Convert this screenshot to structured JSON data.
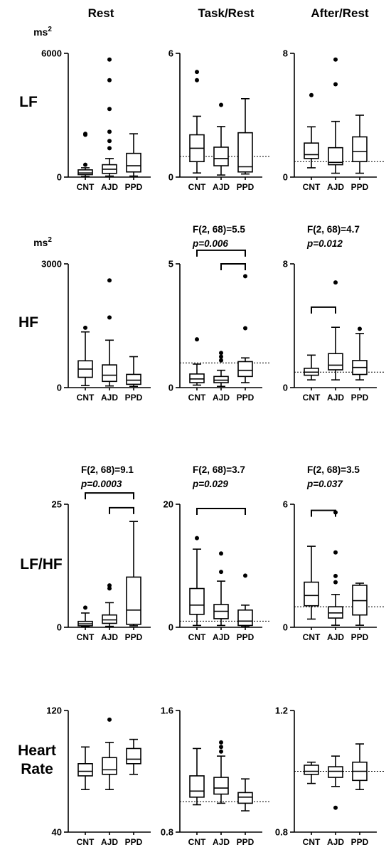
{
  "columns": [
    "Rest",
    "Task/Rest",
    "After/Rest"
  ],
  "rows": [
    {
      "label": "LF",
      "unit": "ms2"
    },
    {
      "label": "HF",
      "unit": "ms2"
    },
    {
      "label": "LF/HF",
      "unit": ""
    },
    {
      "label_lines": [
        "Heart",
        "Rate"
      ],
      "unit": ""
    }
  ],
  "groups": [
    "CNT",
    "AJD",
    "PPD"
  ],
  "chart_data": [
    {
      "type": "box",
      "id": "lf-rest",
      "row": 0,
      "col": 0,
      "ylim": [
        0,
        6000
      ],
      "yticks": [
        "0",
        "6000"
      ],
      "reference_line": null,
      "stat_text": null,
      "p_text": null,
      "brackets": [],
      "boxes": [
        {
          "group": "CNT",
          "whisker_low": 30,
          "q1": 120,
          "median": 200,
          "q3": 350,
          "whisker_high": 450,
          "outliers": [
            2100,
            2050,
            600
          ]
        },
        {
          "group": "AJD",
          "whisker_low": 50,
          "q1": 180,
          "median": 380,
          "q3": 600,
          "whisker_high": 900,
          "outliers": [
            5700,
            4700,
            3300,
            2200,
            1750,
            1400
          ]
        },
        {
          "group": "PPD",
          "whisker_low": 50,
          "q1": 250,
          "median": 550,
          "q3": 1150,
          "whisker_high": 2100,
          "outliers": []
        }
      ]
    },
    {
      "type": "box",
      "id": "lf-task",
      "row": 0,
      "col": 1,
      "ylim": [
        0,
        6
      ],
      "yticks": [
        "0",
        "6"
      ],
      "reference_line": 1,
      "stat_text": null,
      "p_text": null,
      "brackets": [],
      "boxes": [
        {
          "group": "CNT",
          "whisker_low": 0.2,
          "q1": 0.75,
          "median": 1.4,
          "q3": 2.05,
          "whisker_high": 2.95,
          "outliers": [
            5.1,
            4.7
          ]
        },
        {
          "group": "AJD",
          "whisker_low": 0.1,
          "q1": 0.55,
          "median": 0.9,
          "q3": 1.45,
          "whisker_high": 2.45,
          "outliers": [
            3.5
          ]
        },
        {
          "group": "PPD",
          "whisker_low": 0.15,
          "q1": 0.25,
          "median": 0.5,
          "q3": 2.15,
          "whisker_high": 3.8,
          "outliers": []
        }
      ]
    },
    {
      "type": "box",
      "id": "lf-after",
      "row": 0,
      "col": 2,
      "ylim": [
        0,
        8
      ],
      "yticks": [
        "0",
        "8"
      ],
      "reference_line": 1,
      "stat_text": null,
      "p_text": null,
      "brackets": [],
      "boxes": [
        {
          "group": "CNT",
          "whisker_low": 0.6,
          "q1": 1.2,
          "median": 1.45,
          "q3": 2.2,
          "whisker_high": 3.25,
          "outliers": [
            5.3
          ]
        },
        {
          "group": "AJD",
          "whisker_low": 0.25,
          "q1": 0.8,
          "median": 0.95,
          "q3": 1.9,
          "whisker_high": 3.6,
          "outliers": [
            7.6,
            6.0
          ]
        },
        {
          "group": "PPD",
          "whisker_low": 0.25,
          "q1": 1.0,
          "median": 1.65,
          "q3": 2.6,
          "whisker_high": 4.0,
          "outliers": []
        }
      ]
    },
    {
      "type": "box",
      "id": "hf-rest",
      "row": 1,
      "col": 0,
      "ylim": [
        0,
        3000
      ],
      "yticks": [
        "0",
        "3000"
      ],
      "reference_line": null,
      "stat_text": null,
      "p_text": null,
      "brackets": [],
      "boxes": [
        {
          "group": "CNT",
          "whisker_low": 50,
          "q1": 250,
          "median": 450,
          "q3": 650,
          "whisker_high": 1350,
          "outliers": [
            1450
          ]
        },
        {
          "group": "AJD",
          "whisker_low": 40,
          "q1": 150,
          "median": 300,
          "q3": 550,
          "whisker_high": 1150,
          "outliers": [
            2600,
            1700
          ]
        },
        {
          "group": "PPD",
          "whisker_low": 30,
          "q1": 80,
          "median": 180,
          "q3": 320,
          "whisker_high": 750,
          "outliers": []
        }
      ]
    },
    {
      "type": "box",
      "id": "hf-task",
      "row": 1,
      "col": 1,
      "ylim": [
        0,
        5
      ],
      "yticks": [
        "0",
        "5"
      ],
      "reference_line": 1,
      "stat_text": "F(2, 68)=5.5",
      "p_text": "p=0.006",
      "brackets": [
        {
          "from": 0,
          "to": 2,
          "y": 5.55
        },
        {
          "from": 1,
          "to": 2,
          "y": 5.0
        }
      ],
      "boxes": [
        {
          "group": "CNT",
          "whisker_low": 0.1,
          "q1": 0.2,
          "median": 0.35,
          "q3": 0.55,
          "whisker_high": 0.95,
          "outliers": [
            1.95
          ]
        },
        {
          "group": "AJD",
          "whisker_low": 0.05,
          "q1": 0.2,
          "median": 0.3,
          "q3": 0.45,
          "whisker_high": 0.7,
          "outliers": [
            1.4,
            1.25,
            1.1
          ]
        },
        {
          "group": "PPD",
          "whisker_low": 0.2,
          "q1": 0.45,
          "median": 0.7,
          "q3": 1.05,
          "whisker_high": 1.2,
          "outliers": [
            4.5,
            2.4
          ]
        }
      ]
    },
    {
      "type": "box",
      "id": "hf-after",
      "row": 1,
      "col": 2,
      "ylim": [
        0,
        8
      ],
      "yticks": [
        "0",
        "8"
      ],
      "reference_line": 1,
      "stat_text": "F(2, 68)=4.7",
      "p_text": "p=0.012",
      "brackets": [
        {
          "from": 0,
          "to": 1,
          "y": 5.2
        }
      ],
      "boxes": [
        {
          "group": "CNT",
          "whisker_low": 0.5,
          "q1": 0.8,
          "median": 1.0,
          "q3": 1.25,
          "whisker_high": 2.1,
          "outliers": []
        },
        {
          "group": "AJD",
          "whisker_low": 0.5,
          "q1": 1.15,
          "median": 1.45,
          "q3": 2.2,
          "whisker_high": 3.9,
          "outliers": [
            6.8
          ]
        },
        {
          "group": "PPD",
          "whisker_low": 0.5,
          "q1": 0.85,
          "median": 1.3,
          "q3": 1.75,
          "whisker_high": 3.5,
          "outliers": [
            3.8
          ]
        }
      ]
    },
    {
      "type": "box",
      "id": "lfhf-rest",
      "row": 2,
      "col": 0,
      "ylim": [
        0,
        25
      ],
      "yticks": [
        "0",
        "25"
      ],
      "reference_line": null,
      "stat_text": "F(2, 68)=9.1",
      "p_text": "p=0.0003",
      "brackets": [
        {
          "from": 0,
          "to": 2,
          "y": 27.3
        },
        {
          "from": 1,
          "to": 2,
          "y": 24.3
        }
      ],
      "boxes": [
        {
          "group": "CNT",
          "whisker_low": 0.1,
          "q1": 0.3,
          "median": 0.7,
          "q3": 1.2,
          "whisker_high": 2.9,
          "outliers": [
            4.0
          ]
        },
        {
          "group": "AJD",
          "whisker_low": 0.2,
          "q1": 0.8,
          "median": 1.5,
          "q3": 2.5,
          "whisker_high": 5.0,
          "outliers": [
            8.5,
            7.9
          ]
        },
        {
          "group": "PPD",
          "whisker_low": 0.3,
          "q1": 0.6,
          "median": 3.5,
          "q3": 10.2,
          "whisker_high": 21.5,
          "outliers": []
        }
      ]
    },
    {
      "type": "box",
      "id": "lfhf-task",
      "row": 2,
      "col": 1,
      "ylim": [
        0,
        20
      ],
      "yticks": [
        "0",
        "20"
      ],
      "reference_line": 1,
      "stat_text": "F(2, 68)=3.7",
      "p_text": "p=0.029",
      "brackets": [
        {
          "from": 0,
          "to": 2,
          "y": 19.3
        }
      ],
      "boxes": [
        {
          "group": "CNT",
          "whisker_low": 0.3,
          "q1": 2.1,
          "median": 3.6,
          "q3": 6.3,
          "whisker_high": 12.7,
          "outliers": [
            14.5
          ]
        },
        {
          "group": "AJD",
          "whisker_low": 0.3,
          "q1": 1.4,
          "median": 2.6,
          "q3": 3.7,
          "whisker_high": 7.5,
          "outliers": [
            12.0,
            9.0
          ]
        },
        {
          "group": "PPD",
          "whisker_low": 0.1,
          "q1": 0.3,
          "median": 1.0,
          "q3": 2.8,
          "whisker_high": 3.6,
          "outliers": [
            8.4
          ]
        }
      ]
    },
    {
      "type": "box",
      "id": "lfhf-after",
      "row": 2,
      "col": 2,
      "ylim": [
        0,
        6
      ],
      "yticks": [
        "0",
        "6"
      ],
      "reference_line": 1,
      "stat_text": "F(2, 68)=3.5",
      "p_text": "p=0.037",
      "brackets": [
        {
          "from": 0,
          "to": 1,
          "y": 5.7
        }
      ],
      "boxes": [
        {
          "group": "CNT",
          "whisker_low": 0.4,
          "q1": 1.05,
          "median": 1.55,
          "q3": 2.2,
          "whisker_high": 3.95,
          "outliers": []
        },
        {
          "group": "AJD",
          "whisker_low": 0.1,
          "q1": 0.45,
          "median": 0.7,
          "q3": 1.0,
          "whisker_high": 1.6,
          "outliers": [
            5.6,
            3.65,
            2.5,
            2.2
          ]
        },
        {
          "group": "PPD",
          "whisker_low": 0.1,
          "q1": 0.6,
          "median": 1.3,
          "q3": 2.05,
          "whisker_high": 2.15,
          "outliers": []
        }
      ]
    },
    {
      "type": "box",
      "id": "hr-rest",
      "row": 3,
      "col": 0,
      "ylim": [
        40,
        120
      ],
      "yticks": [
        "40",
        "120"
      ],
      "reference_line": null,
      "stat_text": null,
      "p_text": null,
      "brackets": [],
      "boxes": [
        {
          "group": "CNT",
          "whisker_low": 68,
          "q1": 77,
          "median": 80,
          "q3": 85,
          "whisker_high": 96,
          "outliers": []
        },
        {
          "group": "AJD",
          "whisker_low": 68,
          "q1": 78,
          "median": 81,
          "q3": 89,
          "whisker_high": 99,
          "outliers": [
            114
          ]
        },
        {
          "group": "PPD",
          "whisker_low": 78,
          "q1": 85,
          "median": 88,
          "q3": 95,
          "whisker_high": 101,
          "outliers": []
        }
      ]
    },
    {
      "type": "box",
      "id": "hr-task",
      "row": 3,
      "col": 1,
      "ylim": [
        0.8,
        1.6
      ],
      "yticks": [
        "0.8",
        "1.6"
      ],
      "reference_line": 1,
      "stat_text": null,
      "p_text": null,
      "brackets": [],
      "boxes": [
        {
          "group": "CNT",
          "whisker_low": 0.98,
          "q1": 1.03,
          "median": 1.07,
          "q3": 1.17,
          "whisker_high": 1.35,
          "outliers": []
        },
        {
          "group": "AJD",
          "whisker_low": 0.99,
          "q1": 1.05,
          "median": 1.09,
          "q3": 1.16,
          "whisker_high": 1.3,
          "outliers": [
            1.39,
            1.36,
            1.33
          ]
        },
        {
          "group": "PPD",
          "whisker_low": 0.94,
          "q1": 0.99,
          "median": 1.03,
          "q3": 1.06,
          "whisker_high": 1.15,
          "outliers": []
        }
      ]
    },
    {
      "type": "box",
      "id": "hr-after",
      "row": 3,
      "col": 2,
      "ylim": [
        0.8,
        1.2
      ],
      "yticks": [
        "0.8",
        "1.2"
      ],
      "reference_line": 1,
      "stat_text": null,
      "p_text": null,
      "brackets": [],
      "boxes": [
        {
          "group": "CNT",
          "whisker_low": 0.96,
          "q1": 0.99,
          "median": 1.0,
          "q3": 1.02,
          "whisker_high": 1.03,
          "outliers": []
        },
        {
          "group": "AJD",
          "whisker_low": 0.95,
          "q1": 0.98,
          "median": 1.0,
          "q3": 1.015,
          "whisker_high": 1.05,
          "outliers": [
            0.88
          ]
        },
        {
          "group": "PPD",
          "whisker_low": 0.94,
          "q1": 0.97,
          "median": 1.0,
          "q3": 1.03,
          "whisker_high": 1.09,
          "outliers": []
        }
      ]
    }
  ]
}
